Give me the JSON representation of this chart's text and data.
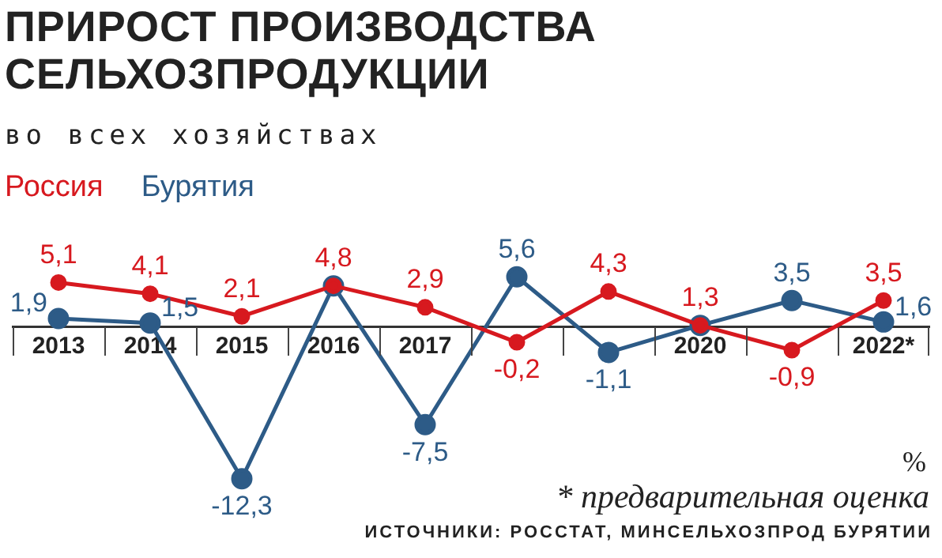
{
  "chart_data": {
    "type": "line",
    "title": "ПРИРОСТ ПРОИЗВОДСТВА\nСЕЛЬХОЗПРОДУКЦИИ",
    "subtitle": "во всех хозяйствах",
    "categories": [
      "2013",
      "2014",
      "2015",
      "2016",
      "2017",
      null,
      null,
      "2020",
      null,
      "2022*"
    ],
    "series": [
      {
        "name": "Россия",
        "color": "#d7191f",
        "values": [
          5.1,
          4.1,
          2.1,
          4.8,
          2.9,
          -0.2,
          4.3,
          1.3,
          -0.9,
          3.5
        ],
        "value_labels": [
          "5,1",
          "4,1",
          "2,1",
          "4,8",
          "2,9",
          "-0,2",
          "4,3",
          "1,3",
          "-0,9",
          "3,5"
        ]
      },
      {
        "name": "Бурятия",
        "color": "#2d5b87",
        "values": [
          1.9,
          1.5,
          -12.3,
          4.8,
          -7.5,
          5.6,
          -1.1,
          1.3,
          3.5,
          1.6
        ],
        "value_labels": [
          "1,9",
          "1,5",
          "-12,3",
          null,
          "-7,5",
          "5,6",
          "-1,1",
          null,
          "3,5",
          "1,6"
        ]
      }
    ],
    "marker": "circle",
    "legend": "top left",
    "grid": false,
    "annotations": [
      "%",
      "* предварительная оценка",
      "ИСТОЧНИКИ: РОССТАТ, МИНСЕЛЬХОЗПРОД БУРЯТИИ"
    ]
  }
}
